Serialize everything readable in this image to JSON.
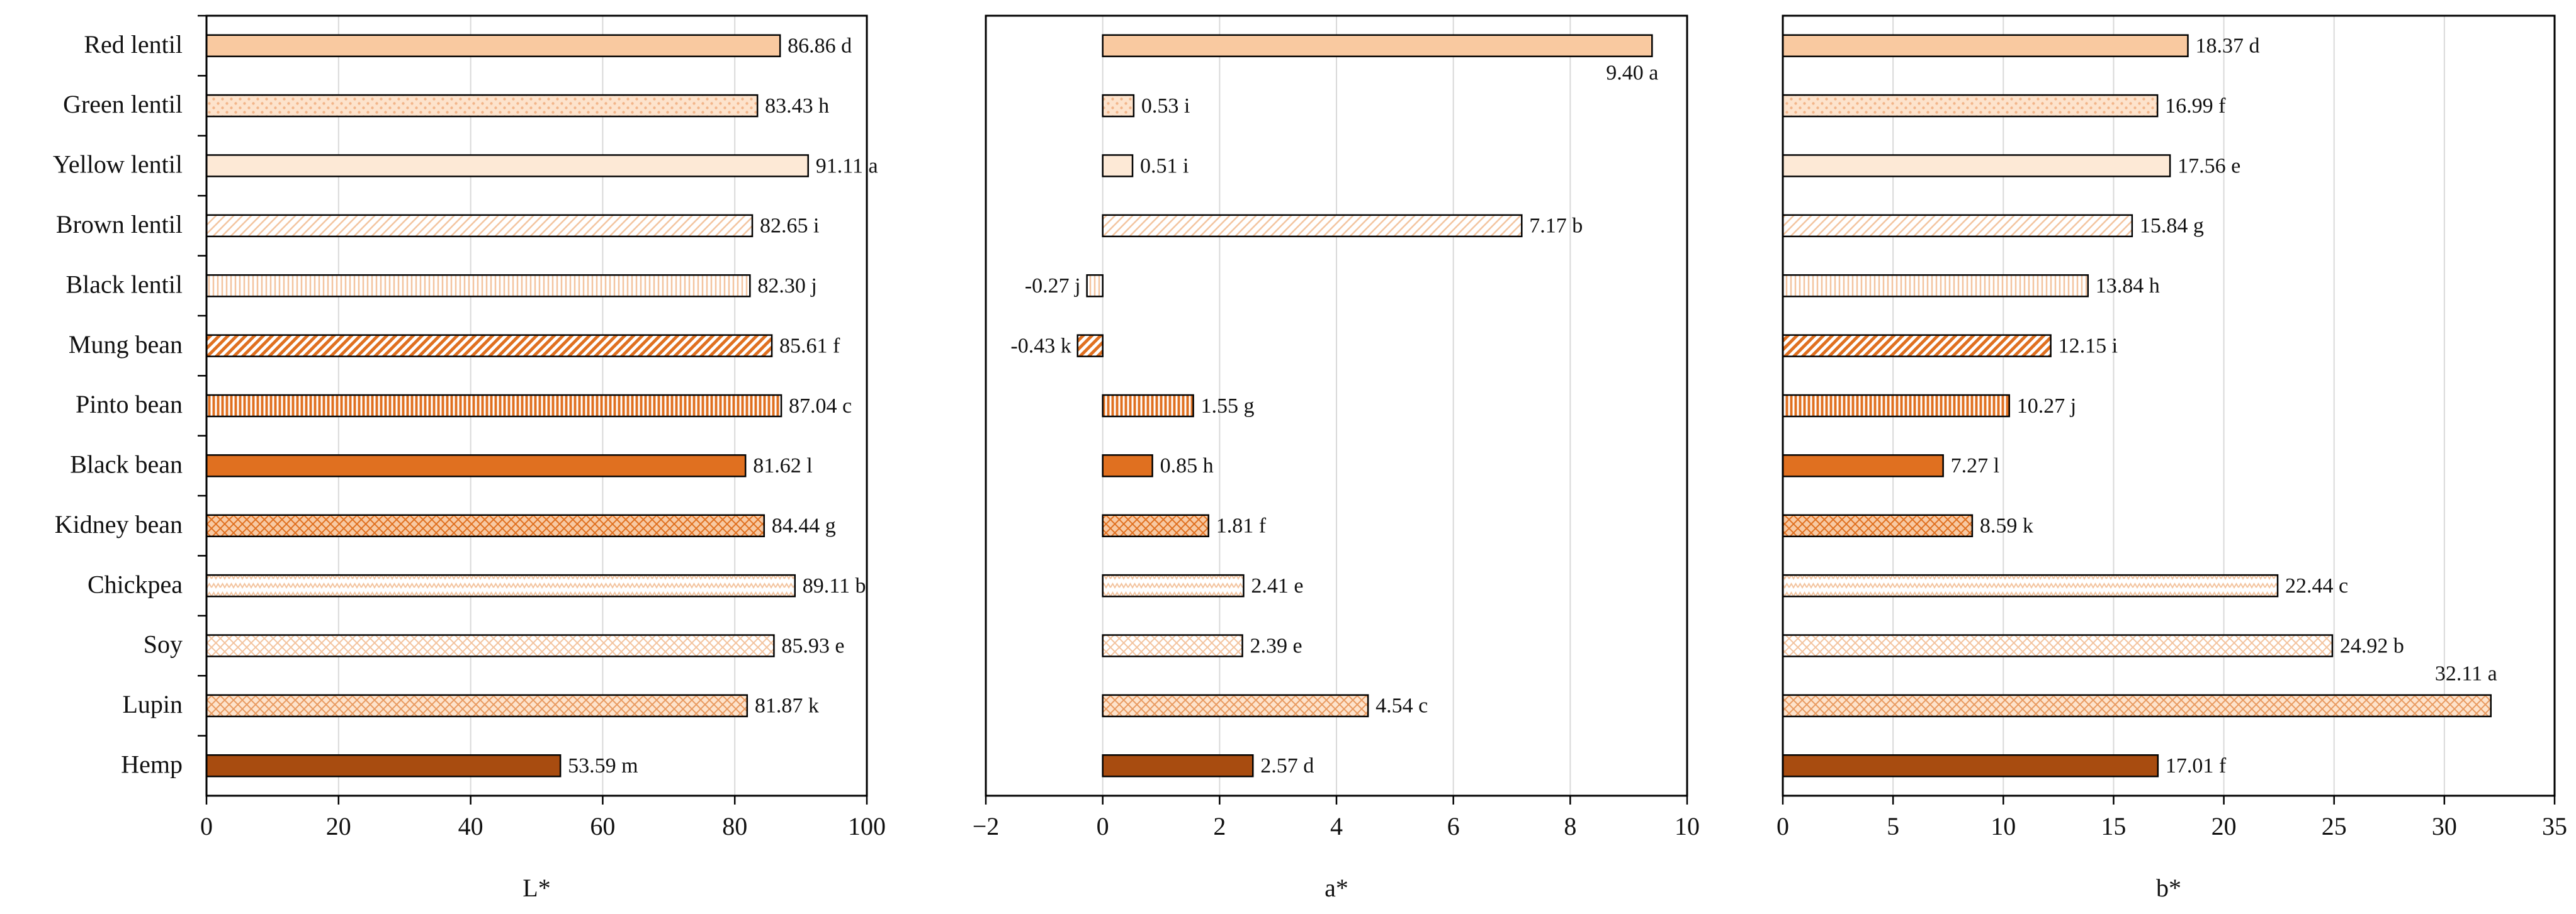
{
  "chart_data": {
    "type": "bar",
    "orientation": "horizontal",
    "categories": [
      "Red lentil",
      "Green lentil",
      "Yellow lentil",
      "Brown lentil",
      "Black lentil",
      "Mung bean",
      "Pinto bean",
      "Black bean",
      "Kidney bean",
      "Chickpea",
      "Soy",
      "Lupin",
      "Hemp"
    ],
    "fills": [
      {
        "pattern": "solid",
        "color": "#f9c9a0",
        "bg": "#f9c9a0"
      },
      {
        "pattern": "dots",
        "color": "#f2b58a",
        "bg": "#fde3cc"
      },
      {
        "pattern": "solid",
        "color": "#fde9d6",
        "bg": "#fde9d6"
      },
      {
        "pattern": "diagonal-light",
        "color": "#f3c49f",
        "bg": "#ffffff"
      },
      {
        "pattern": "vertical-light",
        "color": "#f3c49f",
        "bg": "#ffffff"
      },
      {
        "pattern": "diagonal-bold",
        "color": "#e07020",
        "bg": "#ffffff"
      },
      {
        "pattern": "vertical-bold",
        "color": "#e07020",
        "bg": "#ffffff"
      },
      {
        "pattern": "solid",
        "color": "#e07020",
        "bg": "#e07020"
      },
      {
        "pattern": "crosshatch",
        "color": "#e07020",
        "bg": "#f7c9a3"
      },
      {
        "pattern": "zigzag",
        "color": "#f3c49f",
        "bg": "#ffffff"
      },
      {
        "pattern": "diamond",
        "color": "#f3c49f",
        "bg": "#ffffff"
      },
      {
        "pattern": "crosshatch",
        "color": "#e89a60",
        "bg": "#fde3cc"
      },
      {
        "pattern": "solid",
        "color": "#a84c10",
        "bg": "#a84c10"
      }
    ],
    "panels": [
      {
        "xlabel": "L*",
        "xlim": [
          0,
          100
        ],
        "ticks": [
          0,
          20,
          40,
          60,
          80,
          100
        ],
        "tick_labels": [
          "0",
          "20",
          "40",
          "60",
          "80",
          "100"
        ],
        "values": [
          86.86,
          83.43,
          91.11,
          82.65,
          82.3,
          85.61,
          87.04,
          81.62,
          84.44,
          89.11,
          85.93,
          81.87,
          53.59
        ],
        "labels": [
          "86.86 d",
          "83.43 h",
          "91.11 a",
          "82.65 i",
          "82.30 j",
          "85.61 f",
          "87.04 c",
          "81.62 l",
          "84.44 g",
          "89.11 b",
          "85.93 e",
          "81.87 k",
          "53.59 m"
        ]
      },
      {
        "xlabel": "a*",
        "xlim": [
          -2,
          10
        ],
        "ticks": [
          -2,
          0,
          2,
          4,
          6,
          8,
          10
        ],
        "tick_labels": [
          "−2",
          "0",
          "2",
          "4",
          "6",
          "8",
          "10"
        ],
        "values": [
          9.4,
          0.53,
          0.51,
          7.17,
          -0.27,
          -0.43,
          1.55,
          0.85,
          1.81,
          2.41,
          2.39,
          4.54,
          2.57
        ],
        "labels": [
          "9.40 a",
          "0.53 i",
          "0.51 i",
          "7.17 b",
          "-0.27 j",
          "-0.43 k",
          "1.55 g",
          "0.85 h",
          "1.81 f",
          "2.41 e",
          "2.39 e",
          "4.54 c",
          "2.57 d"
        ]
      },
      {
        "xlabel": "b*",
        "xlim": [
          0,
          35
        ],
        "ticks": [
          0,
          5,
          10,
          15,
          20,
          25,
          30,
          35
        ],
        "tick_labels": [
          "0",
          "5",
          "10",
          "15",
          "20",
          "25",
          "30",
          "35"
        ],
        "values": [
          18.37,
          16.99,
          17.56,
          15.84,
          13.84,
          12.15,
          10.27,
          7.27,
          8.59,
          22.44,
          24.92,
          32.11,
          17.01
        ],
        "labels": [
          "18.37 d",
          "16.99 f",
          "17.56 e",
          "15.84 g",
          "13.84 h",
          "12.15 i",
          "10.27 j",
          "7.27 l",
          "8.59 k",
          "22.44 c",
          "24.92 b",
          "32.11 a",
          "17.01 f"
        ]
      }
    ]
  }
}
